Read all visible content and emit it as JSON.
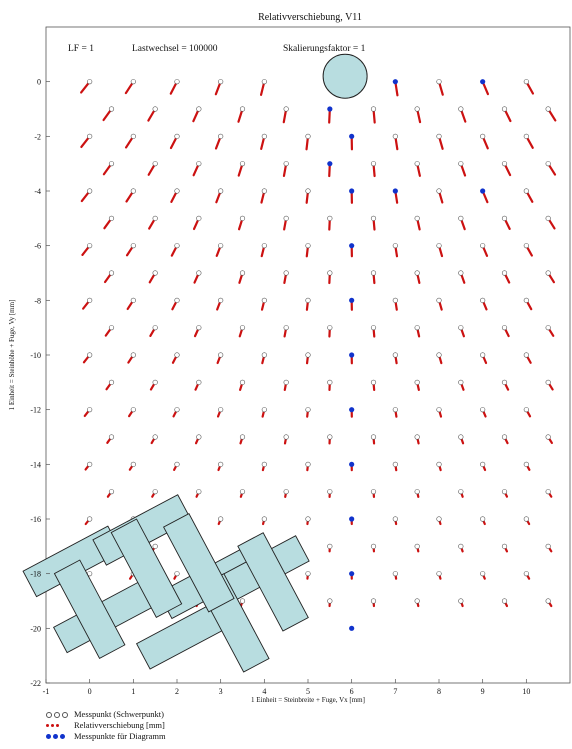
{
  "chart_data": {
    "type": "scatter",
    "title": "Relativverschiebung, V11",
    "header": {
      "lf": "LF = 1",
      "lastwechsel": "Lastwechsel = 100000",
      "skalierung": "Skalierungsfaktor = 1"
    },
    "xlabel": "1 Einheit = Steinbreite + Fuge, Vx [mm]",
    "ylabel": "1 Einheit = Steinhöhe + Fuge, Vy [mm]",
    "xlim": [
      -1,
      11
    ],
    "ylim": [
      -22,
      2
    ],
    "xticks": [
      "-1",
      "0",
      "1",
      "2",
      "3",
      "4",
      "5",
      "6",
      "7",
      "8",
      "9",
      "10"
    ],
    "yticks": [
      "0",
      "-2",
      "-4",
      "-6",
      "-8",
      "-10",
      "-12",
      "-14",
      "-16",
      "-18",
      "-20",
      "-22"
    ],
    "load_center": {
      "x": 5.85,
      "y": 0.2
    },
    "highlight_points": [
      {
        "x": 5.5,
        "y": -1
      },
      {
        "x": 6,
        "y": -2
      },
      {
        "x": 5.5,
        "y": -3
      },
      {
        "x": 6,
        "y": -4
      },
      {
        "x": 6,
        "y": -6
      },
      {
        "x": 6,
        "y": -8
      },
      {
        "x": 6,
        "y": -10
      },
      {
        "x": 6,
        "y": -12
      },
      {
        "x": 6,
        "y": -14
      },
      {
        "x": 6,
        "y": -16
      },
      {
        "x": 6,
        "y": -18
      },
      {
        "x": 6,
        "y": -20
      },
      {
        "x": 7,
        "y": 0
      },
      {
        "x": 9,
        "y": 0
      },
      {
        "x": 7,
        "y": -4
      },
      {
        "x": 9,
        "y": -4
      }
    ],
    "legend": [
      {
        "symbol": "open-circle",
        "label": "Messpunkt (Schwerpunkt)"
      },
      {
        "symbol": "red-dots",
        "label": "Relativverschiebung [mm]"
      },
      {
        "symbol": "blue-dots",
        "label": "Messpunkte für Diagramm"
      }
    ],
    "colors": {
      "vector": "#cc1111",
      "highlight": "#1133cc",
      "paver": "#b8dde0",
      "load": "#b8dde0"
    }
  }
}
